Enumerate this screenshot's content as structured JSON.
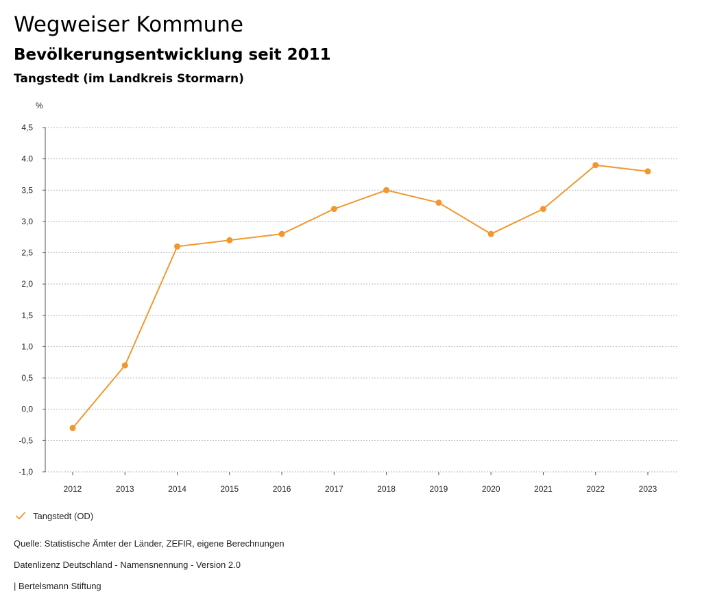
{
  "header": {
    "title": "Wegweiser Kommune",
    "subtitle": "Bevölkerungsentwicklung seit 2011",
    "place": "Tangstedt (im Landkreis Stormarn)"
  },
  "chart_data": {
    "type": "line",
    "title": "Bevölkerungsentwicklung seit 2011",
    "ylabel": "%",
    "xlabel": "",
    "categories": [
      "2012",
      "2013",
      "2014",
      "2015",
      "2016",
      "2017",
      "2018",
      "2019",
      "2020",
      "2021",
      "2022",
      "2023"
    ],
    "series": [
      {
        "name": "Tangstedt (OD)",
        "color": "#f0982f",
        "values": [
          -0.3,
          0.7,
          2.6,
          2.7,
          2.8,
          3.2,
          3.5,
          3.3,
          2.8,
          3.2,
          3.9,
          3.8
        ]
      }
    ],
    "ylim": [
      -1.0,
      4.5
    ],
    "yticks": [
      -1.0,
      -0.5,
      0.0,
      0.5,
      1.0,
      1.5,
      2.0,
      2.5,
      3.0,
      3.5,
      4.0,
      4.5
    ],
    "ytick_labels": [
      "-1,0",
      "-0,5",
      "0,0",
      "0,5",
      "1,0",
      "1,5",
      "2,0",
      "2,5",
      "3,0",
      "3,5",
      "4.0",
      "4,5"
    ],
    "grid": true,
    "legend_position": "bottom-left"
  },
  "legend": {
    "label": "Tangstedt (OD)",
    "icon": "checkmark-icon"
  },
  "footer": {
    "source": "Quelle: Statistische Ämter der Länder, ZEFIR, eigene Berechnungen",
    "license": "Datenlizenz Deutschland - Namensnennung - Version 2.0",
    "publisher": "| Bertelsmann Stiftung"
  },
  "colors": {
    "accent": "#f0982f",
    "grid": "#b5b5b5",
    "text": "#222222"
  }
}
